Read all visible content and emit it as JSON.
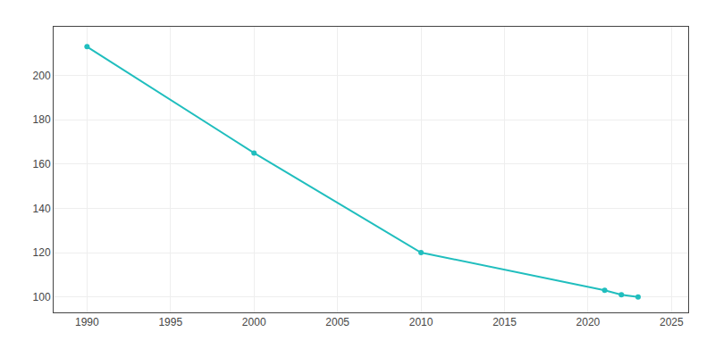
{
  "chart_data": {
    "type": "line",
    "x": [
      1990,
      2000,
      2010,
      2021,
      2022,
      2023
    ],
    "values": [
      213,
      165,
      120,
      103,
      101,
      100
    ],
    "color": "#20bebe",
    "marker": "circle",
    "xlim": [
      1988,
      2026
    ],
    "xticks": [
      1990,
      1995,
      2000,
      2005,
      2010,
      2015,
      2020,
      2025
    ],
    "ylim": [
      93,
      222
    ],
    "yticks": [
      100,
      120,
      140,
      160,
      180,
      200
    ],
    "grid": true
  }
}
